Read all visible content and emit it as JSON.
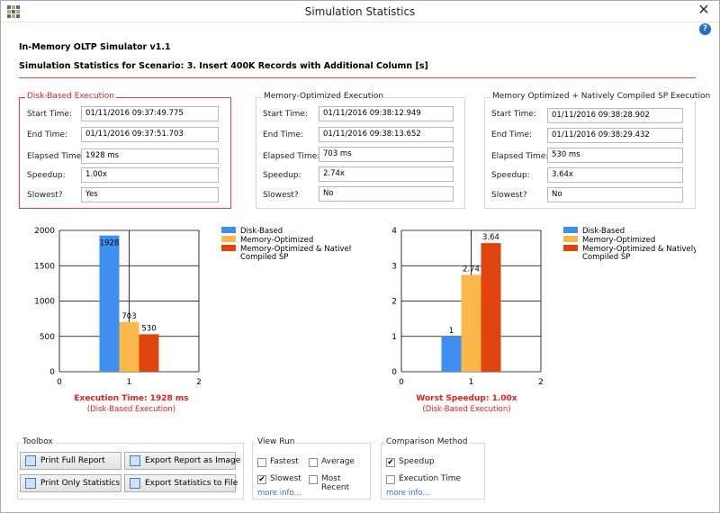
{
  "window": {
    "title": "Simulation Statistics",
    "close_glyph": "✕",
    "help_glyph": "?"
  },
  "header": {
    "app": "In-Memory OLTP Simulator v1.1",
    "scenario": "Simulation Statistics for Scenario: 3. Insert 400K Records with Additional Column [s]"
  },
  "labels": {
    "start": "Start Time:",
    "end": "End Time:",
    "elapsed": "Elapsed Time:",
    "speedup": "Speedup:",
    "slowest": "Slowest?"
  },
  "groups": [
    {
      "title": "Disk-Based Execution",
      "start": "01/11/2016 09:37:49.775",
      "end": "01/11/2016 09:37:51.703",
      "elapsed": "1928 ms",
      "speedup": "1.00x",
      "slowest": "Yes"
    },
    {
      "title": "Memory-Optimized Execution",
      "start": "01/11/2016 09:38:12.949",
      "end": "01/11/2016 09:38:13.652",
      "elapsed": "703 ms",
      "speedup": "2.74x",
      "slowest": "No"
    },
    {
      "title": "Memory Optimized + Natively Compiled  SP Execution",
      "start": "01/11/2016 09:38:28.902",
      "end": "01/11/2016 09:38:29.432",
      "elapsed": "530 ms",
      "speedup": "3.64x",
      "slowest": "No"
    }
  ],
  "legend": {
    "disk": "Disk-Based",
    "mem": "Memory-Optimized",
    "native": "Memory-Optimized & Natively Compiled SP"
  },
  "colors": {
    "disk": "#3e8ff0",
    "mem": "#fab84a",
    "native": "#e0440e",
    "accent": "#e02020"
  },
  "chart_data": [
    {
      "type": "bar",
      "series": [
        {
          "name": "Disk-Based",
          "values": [
            1928
          ]
        },
        {
          "name": "Memory-Optimized",
          "values": [
            703
          ]
        },
        {
          "name": "Memory-Optimized & Natively Compiled SP",
          "values": [
            530
          ]
        }
      ],
      "data_labels": [
        "1928",
        "703",
        "530"
      ],
      "yticks": [
        "0",
        "500",
        "1000",
        "1500",
        "2000"
      ],
      "xticks": [
        "0",
        "1",
        "2"
      ],
      "ylim": [
        0,
        2000
      ],
      "xlim": [
        0,
        2
      ],
      "caption": "Execution Time: 1928 ms",
      "subcaption": "(Disk-Based Execution)"
    },
    {
      "type": "bar",
      "series": [
        {
          "name": "Disk-Based",
          "values": [
            1
          ]
        },
        {
          "name": "Memory-Optimized",
          "values": [
            2.74
          ]
        },
        {
          "name": "Memory-Optimized & Natively Compiled SP",
          "values": [
            3.64
          ]
        }
      ],
      "data_labels": [
        "1",
        "2.74",
        "3.64"
      ],
      "yticks": [
        "0",
        "1",
        "2",
        "3",
        "4"
      ],
      "xticks": [
        "0",
        "1",
        "2"
      ],
      "ylim": [
        0,
        4
      ],
      "xlim": [
        0,
        2
      ],
      "caption": "Worst Speedup: 1.00x",
      "subcaption": "(Disk-Based Execution)"
    }
  ],
  "toolbox": {
    "title": "Toolbox",
    "print_full": "Print Full Report",
    "export_image": "Export Report as Image",
    "print_stats": "Print Only Statistics",
    "export_stats": "Export Statistics to File"
  },
  "view_run": {
    "title": "View Run",
    "fastest": "Fastest",
    "average": "Average",
    "slowest": "Slowest",
    "most_recent": "Most Recent",
    "more": "more info...",
    "check": "✔"
  },
  "comparison": {
    "title": "Comparison Method",
    "speedup": "Speedup",
    "exec_time": "Execution Time",
    "more": "more info..."
  }
}
